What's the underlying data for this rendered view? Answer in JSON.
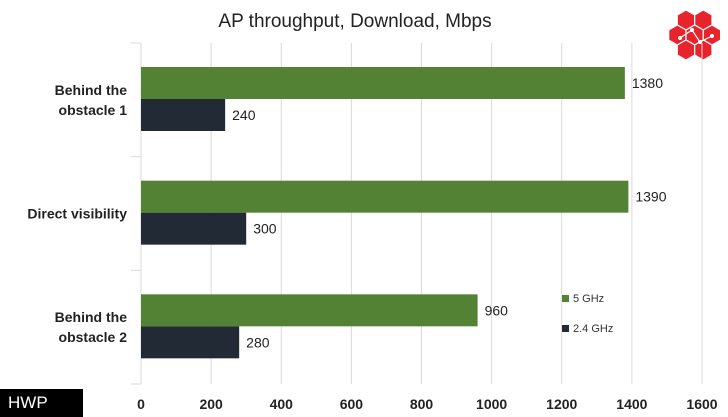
{
  "chart_data": {
    "type": "bar",
    "orientation": "horizontal",
    "title": "AP throughput, Download, Mbps",
    "categories": [
      "Behind the obstacle 1",
      "Direct visibility",
      "Behind the obstacle 2"
    ],
    "category_lines": [
      [
        "Behind the",
        "obstacle 1"
      ],
      [
        "Direct visibility"
      ],
      [
        "Behind the",
        "obstacle 2"
      ]
    ],
    "series": [
      {
        "name": "5 GHz",
        "color": "#548235",
        "values": [
          1380,
          1390,
          960
        ]
      },
      {
        "name": "2.4 GHz",
        "color": "#222a35",
        "values": [
          240,
          300,
          280
        ]
      }
    ],
    "xlim": [
      0,
      1600
    ],
    "xticks": [
      0,
      200,
      400,
      600,
      800,
      1000,
      1200,
      1400,
      1600
    ],
    "grid": true,
    "legend": "inside-lower-right",
    "logo": "honeycomb-logo"
  },
  "badge": {
    "text": "HWP"
  }
}
